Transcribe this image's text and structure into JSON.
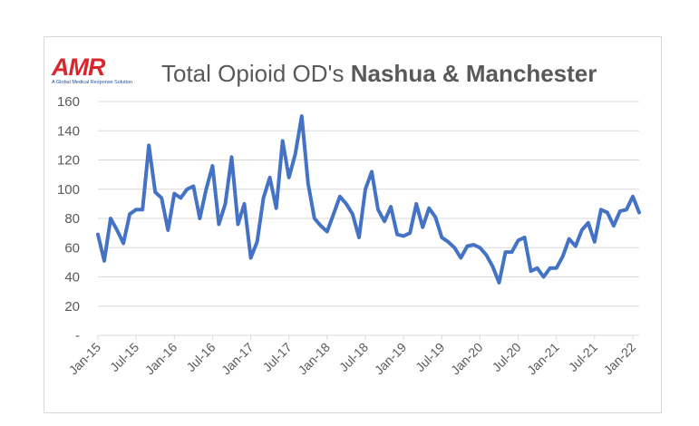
{
  "header": {
    "logo_text": "AMR",
    "logo_tagline": "A Global Medical Response Solution",
    "title_normal": "Total Opioid OD's",
    "title_bold": "Nashua & Manchester"
  },
  "colors": {
    "line": "#4472c4",
    "grid": "#d9d9d9",
    "text": "#595959",
    "logo_red": "#d9262c",
    "logo_blue": "#1f4e9b"
  },
  "chart_data": {
    "type": "line",
    "title": "Total Opioid OD's Nashua & Manchester",
    "xlabel": "",
    "ylabel": "",
    "ylim": [
      0,
      160
    ],
    "y_ticks": [
      "-",
      "20",
      "40",
      "60",
      "80",
      "100",
      "120",
      "140",
      "160"
    ],
    "x_tick_labels": [
      "Jan-15",
      "Jul-15",
      "Jan-16",
      "Jul-16",
      "Jan-17",
      "Jul-17",
      "Jan-18",
      "Jul-18",
      "Jan-19",
      "Jul-19",
      "Jan-20",
      "Jul-20",
      "Jan-21",
      "Jul-21",
      "Jan-22"
    ],
    "x_start": "Jan-15",
    "x_end": "Apr-22",
    "grid": true,
    "legend": "none",
    "series": [
      {
        "values": [
          69,
          51,
          80,
          72,
          63,
          83,
          86,
          86,
          130,
          98,
          94,
          72,
          97,
          94,
          100,
          102,
          80,
          100,
          116,
          76,
          90,
          122,
          76,
          90,
          53,
          64,
          94,
          108,
          87,
          133,
          108,
          124,
          150,
          104,
          80,
          75,
          71,
          83,
          95,
          90,
          83,
          67,
          100,
          112,
          86,
          78,
          88,
          69,
          68,
          70,
          90,
          74,
          87,
          81,
          67,
          64,
          60,
          53,
          61,
          62,
          60,
          55,
          47,
          36,
          57,
          57,
          65,
          67,
          44,
          46,
          40,
          46,
          46,
          54,
          66,
          61,
          72,
          77,
          64,
          86,
          84,
          75,
          85,
          86,
          95,
          84
        ]
      }
    ]
  }
}
